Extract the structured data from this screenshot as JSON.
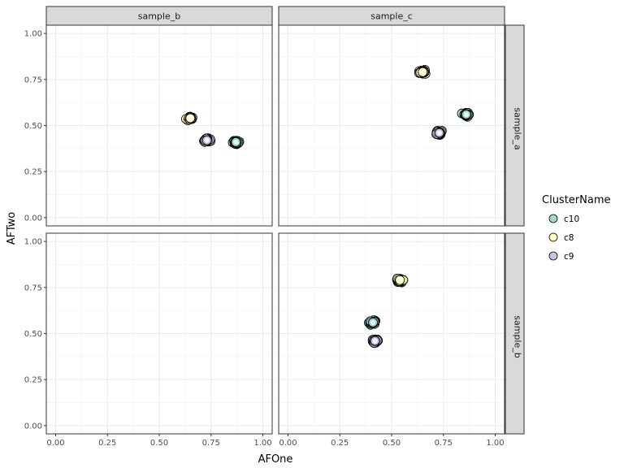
{
  "chart_data": {
    "type": "scatter",
    "facet_columns": [
      "sample_b",
      "sample_c"
    ],
    "facet_rows": [
      "sample_a",
      "sample_b"
    ],
    "xlabel": "AFOne",
    "ylabel": "AFTwo",
    "xlim": [
      0,
      1
    ],
    "ylim": [
      0,
      1
    ],
    "x_ticks": [
      "0.00",
      "0.25",
      "0.50",
      "0.75",
      "1.00"
    ],
    "y_ticks": [
      "0.00",
      "0.25",
      "0.50",
      "0.75",
      "1.00"
    ],
    "grid": true,
    "legend": {
      "title": "ClusterName",
      "position": "right",
      "entries": [
        {
          "name": "c10",
          "color": "#8DD3C7"
        },
        {
          "name": "c8",
          "color": "#FFFFB3"
        },
        {
          "name": "c9",
          "color": "#BEBADA"
        }
      ]
    },
    "panels": [
      {
        "row": "sample_a",
        "col": "sample_b",
        "clusters": [
          {
            "name": "c8",
            "x": 0.65,
            "y": 0.54
          },
          {
            "name": "c9",
            "x": 0.73,
            "y": 0.42
          },
          {
            "name": "c10",
            "x": 0.87,
            "y": 0.41
          }
        ]
      },
      {
        "row": "sample_a",
        "col": "sample_c",
        "clusters": [
          {
            "name": "c8",
            "x": 0.65,
            "y": 0.79
          },
          {
            "name": "c10",
            "x": 0.86,
            "y": 0.56
          },
          {
            "name": "c9",
            "x": 0.73,
            "y": 0.46
          }
        ]
      },
      {
        "row": "sample_b",
        "col": "sample_b",
        "clusters": []
      },
      {
        "row": "sample_b",
        "col": "sample_c",
        "clusters": [
          {
            "name": "c8",
            "x": 0.54,
            "y": 0.79
          },
          {
            "name": "c10",
            "x": 0.41,
            "y": 0.56
          },
          {
            "name": "c9",
            "x": 0.42,
            "y": 0.46
          }
        ]
      }
    ]
  }
}
